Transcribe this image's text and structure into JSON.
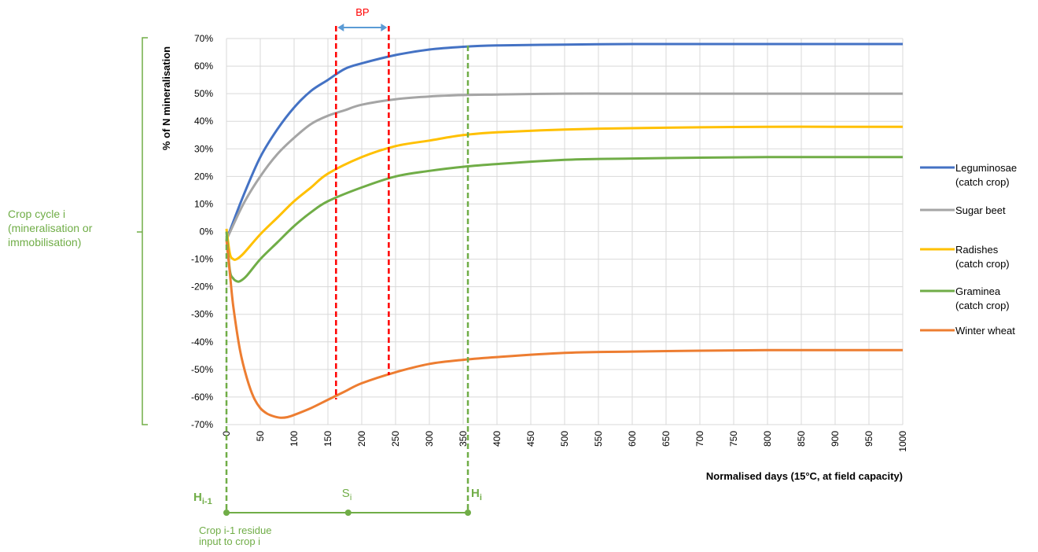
{
  "chart_data": {
    "type": "line",
    "xlabel": "Normalised days (15°C, at field capacity)",
    "ylabel": "% of N mineralisation",
    "xlim": [
      0,
      1000
    ],
    "ylim": [
      -70,
      70
    ],
    "x_ticks": [
      "0",
      "50",
      "100",
      "150",
      "200",
      "250",
      "300",
      "350",
      "400",
      "450",
      "500",
      "550",
      "600",
      "650",
      "700",
      "750",
      "800",
      "850",
      "900",
      "950",
      "1000"
    ],
    "y_ticks": [
      "70%",
      "60%",
      "50%",
      "40%",
      "30%",
      "20%",
      "10%",
      "0%",
      "-10%",
      "-20%",
      "-30%",
      "-40%",
      "-50%",
      "-60%",
      "-70%"
    ],
    "grid": true,
    "legend_position": "right",
    "series": [
      {
        "name": "Leguminosae\n(catch crop)",
        "color": "#4472c4",
        "x": [
          0,
          25,
          50,
          75,
          100,
          125,
          150,
          175,
          200,
          250,
          300,
          350,
          400,
          500,
          600,
          700,
          800,
          900,
          1000
        ],
        "y": [
          -3,
          13,
          27,
          37,
          45,
          51,
          55,
          59,
          61,
          64,
          66,
          67,
          67.5,
          67.8,
          68,
          68,
          68,
          68,
          68
        ]
      },
      {
        "name": "Sugar beet",
        "color": "#a5a5a5",
        "x": [
          0,
          25,
          50,
          75,
          100,
          125,
          150,
          175,
          200,
          250,
          300,
          350,
          400,
          500,
          600,
          700,
          800,
          900,
          1000
        ],
        "y": [
          -3,
          10,
          20,
          28,
          34,
          39,
          42,
          44,
          46,
          48,
          49,
          49.5,
          49.7,
          50,
          50,
          50,
          50,
          50,
          50
        ]
      },
      {
        "name": "Radishes\n(catch crop)",
        "color": "#ffc000",
        "x": [
          0,
          5,
          10,
          15,
          25,
          50,
          75,
          100,
          125,
          150,
          200,
          250,
          300,
          350,
          400,
          500,
          600,
          700,
          800,
          900,
          1000
        ],
        "y": [
          1,
          -8,
          -10,
          -10,
          -8,
          -1,
          5,
          11,
          16,
          21,
          27,
          31,
          33,
          35,
          36,
          37,
          37.5,
          37.8,
          38,
          38,
          38
        ]
      },
      {
        "name": "Graminea\n(catch crop)",
        "color": "#70ad47",
        "x": [
          0,
          5,
          10,
          15,
          20,
          30,
          50,
          75,
          100,
          125,
          150,
          200,
          250,
          300,
          350,
          400,
          500,
          600,
          700,
          800,
          900,
          1000
        ],
        "y": [
          0,
          -14,
          -17,
          -18,
          -18,
          -16,
          -10,
          -4,
          2,
          7,
          11,
          16,
          20,
          22,
          23.5,
          24.5,
          26,
          26.5,
          26.8,
          27,
          27,
          27
        ]
      },
      {
        "name": "Winter wheat",
        "color": "#ed7d31",
        "x": [
          0,
          5,
          10,
          20,
          30,
          40,
          50,
          60,
          70,
          80,
          90,
          100,
          125,
          150,
          175,
          200,
          250,
          300,
          350,
          400,
          500,
          600,
          700,
          800,
          900,
          1000
        ],
        "y": [
          -3,
          -15,
          -27,
          -43,
          -53,
          -60,
          -64,
          -66,
          -67,
          -67.5,
          -67.3,
          -66.5,
          -64,
          -61,
          -58,
          -55,
          -51,
          -48,
          -46.5,
          -45.5,
          -44,
          -43.5,
          -43.2,
          -43,
          -43,
          -43
        ]
      }
    ],
    "annotations": {
      "bp_label": "BP",
      "bp_x": [
        162,
        240
      ],
      "hi_x": 357,
      "crop_cycle_text": [
        "Crop cycle i",
        "(mineralisation or",
        "immobilisation)"
      ],
      "h_prev": "H",
      "h_prev_sub": "i-1",
      "s_label": "S",
      "s_sub": "i",
      "h_cur": "H",
      "h_cur_sub": "i",
      "s_x": 180,
      "residue_text": [
        "Crop i-1 residue",
        "input to crop i"
      ]
    }
  },
  "colors": {
    "green": "#70ad47",
    "red": "#ff0000",
    "blue_arrow": "#5b9bd5",
    "grid": "#d9d9d9"
  }
}
